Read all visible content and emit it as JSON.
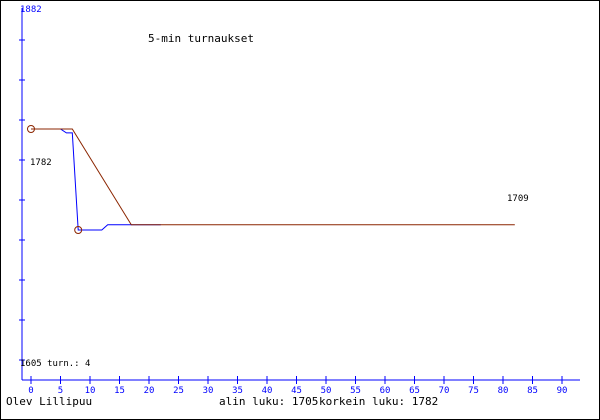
{
  "chart_data": {
    "type": "line",
    "title": "5-min turnaukset",
    "y_axis_top_label": "1882",
    "y_axis_bottom_label": "1605 turn.: 4",
    "x_ticks": [
      0,
      5,
      10,
      15,
      20,
      25,
      30,
      35,
      40,
      45,
      50,
      55,
      60,
      65,
      70,
      75,
      80,
      85,
      90
    ],
    "xlim": [
      0,
      90
    ],
    "ylim": [
      1605,
      1882
    ],
    "grid": false,
    "colors": {
      "axis": "#0000ff",
      "series_blue": "#0000ff",
      "series_brown": "#8b2500",
      "border": "#000000"
    },
    "series": [
      {
        "color_key": "series_blue",
        "x": [
          0,
          5,
          6,
          7,
          8,
          9,
          12,
          13,
          16,
          22
        ],
        "y": [
          1782,
          1782,
          1779,
          1779,
          1705,
          1705,
          1705,
          1709,
          1709,
          1709
        ]
      },
      {
        "color_key": "series_brown",
        "x": [
          0,
          5,
          7,
          17,
          82
        ],
        "y": [
          1782,
          1782,
          1782,
          1709,
          1709
        ]
      }
    ],
    "markers": [
      {
        "x": 0,
        "y": 1782
      },
      {
        "x": 8,
        "y": 1705
      }
    ],
    "annotations": [
      {
        "text": "1782"
      },
      {
        "text": "1709"
      }
    ]
  },
  "footer": {
    "player": "Olev Lillipuu",
    "low": "alin luku: 1705",
    "high": "korkein luku: 1782"
  }
}
